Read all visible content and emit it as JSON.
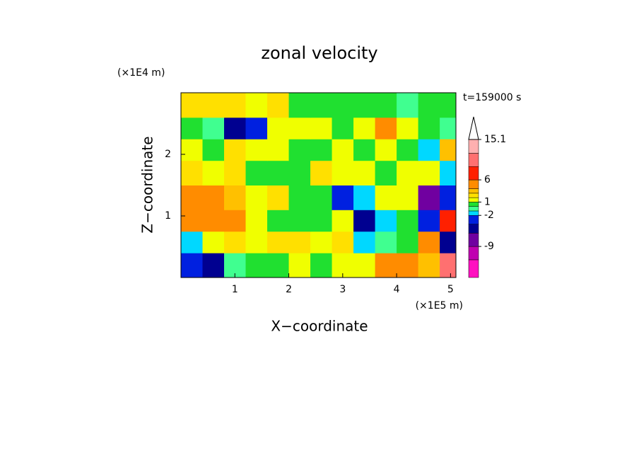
{
  "chart_data": {
    "type": "heatmap",
    "title": "zonal velocity",
    "xlabel": "X−coordinate",
    "ylabel": "Z−coordinate",
    "xunit": "(×1E5 m)",
    "yunit": "(×1E4 m)",
    "annotation": "t=159000 s",
    "xlim": [
      0,
      5.1
    ],
    "ylim": [
      0,
      3
    ],
    "xticks": [
      1,
      2,
      3,
      4,
      5
    ],
    "yticks": [
      1,
      2
    ],
    "xbins": [
      0,
      0.4,
      0.8,
      1.2,
      1.6,
      2.0,
      2.4,
      2.8,
      3.2,
      3.6,
      4.0,
      4.4,
      4.8,
      5.1
    ],
    "ybins": [
      0,
      0.4,
      0.75,
      1.1,
      1.5,
      1.9,
      2.25,
      2.6,
      3
    ],
    "z": [
      [
        -3,
        -6,
        -1,
        0,
        0,
        1,
        0,
        1,
        1,
        4,
        5,
        3,
        9
      ],
      [
        -2,
        1,
        2,
        1,
        2,
        2,
        1,
        2,
        -2,
        -1,
        0,
        4,
        -6
      ],
      [
        5,
        4,
        4,
        1,
        0,
        0,
        0,
        1,
        -6,
        -2,
        0,
        -4,
        6
      ],
      [
        4,
        5,
        3,
        1,
        2,
        0,
        0,
        -4,
        -2,
        1,
        1,
        -8,
        -4
      ],
      [
        2,
        1,
        2,
        0,
        0,
        0,
        2,
        1,
        1,
        0,
        1,
        1,
        -2
      ],
      [
        1,
        0,
        2,
        1,
        1,
        0,
        0,
        1,
        0,
        1,
        0,
        -2,
        3
      ],
      [
        0,
        -1,
        -6,
        -4,
        1,
        1,
        1,
        0,
        1,
        4,
        1,
        0,
        -1
      ],
      [
        2,
        2,
        2,
        1.5,
        2,
        0,
        0.5,
        0,
        0,
        0,
        -1,
        0,
        0
      ]
    ],
    "colorbar": {
      "levels": [
        -16,
        -12,
        -9,
        -6,
        -4,
        -2,
        -1,
        0,
        1,
        2,
        3,
        4,
        6,
        9,
        12,
        15.1
      ],
      "colors": [
        "#ff10c0",
        "#c000b0",
        "#7000a0",
        "#000090",
        "#0020e0",
        "#00d8ff",
        "#40ff90",
        "#20e030",
        "#f0ff00",
        "#ffe000",
        "#ffc000",
        "#ff8c00",
        "#ff2000",
        "#ff7070",
        "#ffb0b0"
      ],
      "ticks": [
        15.1,
        6,
        1,
        -2,
        -9
      ]
    }
  }
}
